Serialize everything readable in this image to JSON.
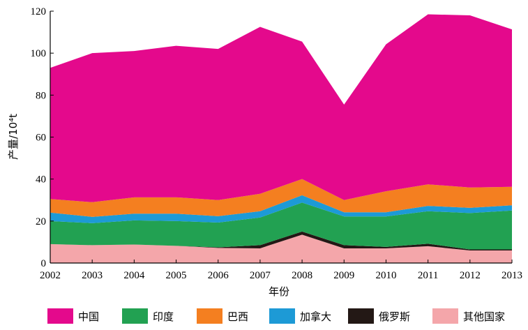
{
  "chart_data": {
    "type": "area",
    "stacked": true,
    "x": [
      2002,
      2003,
      2004,
      2005,
      2006,
      2007,
      2008,
      2009,
      2010,
      2011,
      2012,
      2013
    ],
    "xlabel": "年份",
    "ylabel": "产量/10⁴t",
    "ylim": [
      0,
      120
    ],
    "yticks": [
      0,
      20,
      40,
      60,
      80,
      100,
      120
    ],
    "grid": false,
    "legend_position": "bottom",
    "series": [
      {
        "name": "其他国家",
        "color": "#f4a6aa",
        "values": [
          9,
          8.5,
          8.8,
          8.2,
          7.2,
          7,
          13.5,
          7,
          7,
          8,
          6,
          6
        ]
      },
      {
        "name": "俄罗斯",
        "color": "#231815",
        "values": [
          0,
          0,
          0,
          0,
          0.3,
          1.5,
          1.5,
          1.5,
          0.7,
          1.2,
          0.5,
          0.5
        ]
      },
      {
        "name": "印度",
        "color": "#22a152",
        "values": [
          11,
          10.5,
          11.5,
          11.8,
          11.8,
          13.2,
          13.8,
          13.7,
          14.5,
          15.5,
          17.3,
          18.5
        ]
      },
      {
        "name": "加拿大",
        "color": "#1d9ad6",
        "values": [
          4,
          3,
          3.2,
          3.5,
          3,
          3,
          3.5,
          2,
          2,
          2.5,
          2.5,
          2.5
        ]
      },
      {
        "name": "巴西",
        "color": "#f47f20",
        "values": [
          6.5,
          7,
          7.8,
          7.8,
          7.7,
          8.3,
          7.7,
          5.8,
          10,
          10.3,
          9.7,
          8.8
        ]
      },
      {
        "name": "中国",
        "color": "#e4098c",
        "values": [
          62.5,
          71,
          69.7,
          72.2,
          72,
          79.5,
          65.5,
          45.5,
          70,
          81,
          82,
          75
        ]
      }
    ],
    "legend_order": [
      "中国",
      "印度",
      "巴西",
      "加拿大",
      "俄罗斯",
      "其他国家"
    ]
  }
}
